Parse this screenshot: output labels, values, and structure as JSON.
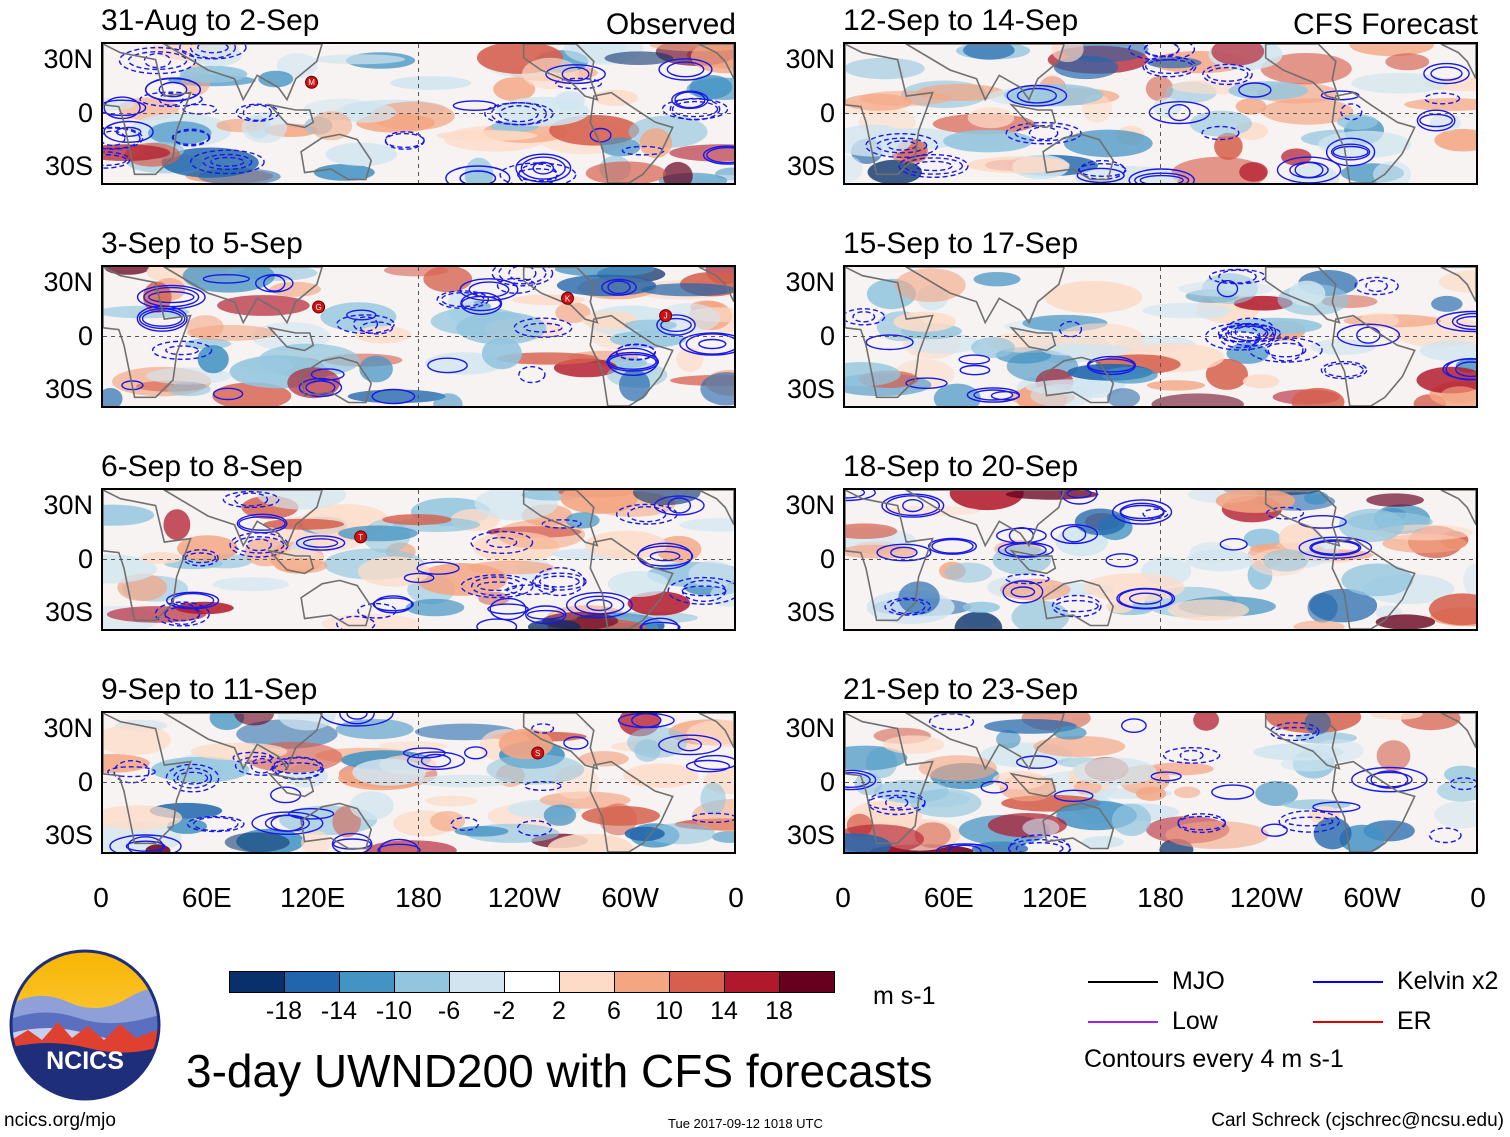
{
  "chart_data": {
    "type": "heatmap",
    "title": "3-day UWND200 with CFS forecasts",
    "variable": "UWND200",
    "units": "m s-1",
    "sections": {
      "observed": "Observed",
      "forecast": "CFS Forecast"
    },
    "latitude_ticks": [
      "30N",
      "0",
      "30S"
    ],
    "latitude_range": [
      -40,
      40
    ],
    "longitude_ticks": [
      "0",
      "60E",
      "120E",
      "180",
      "120W",
      "60W",
      "0"
    ],
    "longitude_range": [
      0,
      360
    ],
    "panels": [
      {
        "title": "31-Aug to 2-Sep",
        "source": "Observed",
        "storms": [
          {
            "label": "M",
            "lon": 119,
            "lat": 18
          }
        ]
      },
      {
        "title": "3-Sep to 5-Sep",
        "source": "Observed",
        "storms": [
          {
            "label": "G",
            "lon": 123,
            "lat": 17
          },
          {
            "label": "K",
            "lon": 265,
            "lat": 22
          },
          {
            "label": "J",
            "lon": 321,
            "lat": 12
          }
        ]
      },
      {
        "title": "6-Sep to 8-Sep",
        "source": "Observed",
        "storms": [
          {
            "label": "T",
            "lon": 147,
            "lat": 13
          }
        ]
      },
      {
        "title": "9-Sep to 11-Sep",
        "source": "Observed",
        "storms": [
          {
            "label": "S",
            "lon": 248,
            "lat": 17
          }
        ]
      },
      {
        "title": "12-Sep to 14-Sep",
        "source": "CFS Forecast",
        "storms": []
      },
      {
        "title": "15-Sep to 17-Sep",
        "source": "CFS Forecast",
        "storms": []
      },
      {
        "title": "18-Sep to 20-Sep",
        "source": "CFS Forecast",
        "storms": []
      },
      {
        "title": "21-Sep to 23-Sep",
        "source": "CFS Forecast",
        "storms": []
      }
    ],
    "colorbar": {
      "labels": [
        "-18",
        "-14",
        "-10",
        "-6",
        "-2",
        "2",
        "6",
        "10",
        "14",
        "18"
      ],
      "colors": [
        "#08306b",
        "#2166ac",
        "#4393c3",
        "#92c5de",
        "#d1e5f0",
        "#ffffff",
        "#fddbc7",
        "#f4a582",
        "#d6604d",
        "#b2182b",
        "#67001f"
      ],
      "units": "m s-1"
    },
    "legend": {
      "items": [
        {
          "label": "MJO",
          "color": "#000000"
        },
        {
          "label": "Kelvin x2",
          "color": "#0000ff"
        },
        {
          "label": "Low",
          "color": "#a020f0"
        },
        {
          "label": "ER",
          "color": "#e00000"
        }
      ],
      "note": "Contours every 4 m s-1"
    }
  },
  "footer": {
    "logo_text": "NCICS",
    "url": "ncics.org/mjo",
    "timestamp": "Tue 2017-09-12 1018 UTC",
    "author": "Carl Schreck (cjschrec@ncsu.edu)"
  }
}
